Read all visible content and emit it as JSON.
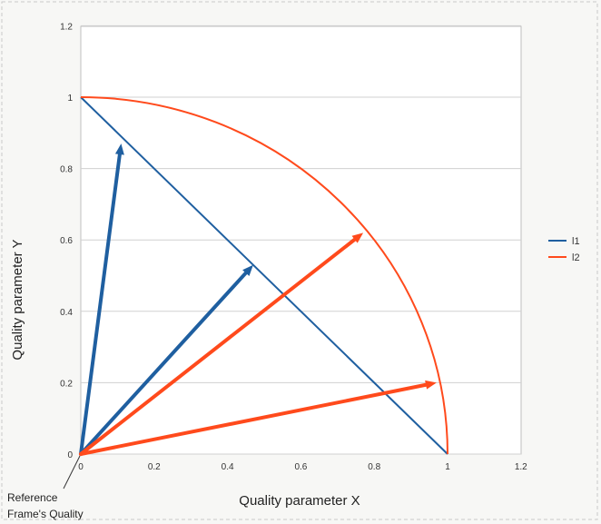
{
  "chart_data": {
    "type": "line",
    "title": "",
    "xlabel": "Quality parameter X",
    "ylabel": "Quality parameter Y",
    "xlim": [
      0,
      1.2
    ],
    "ylim": [
      0,
      1.2
    ],
    "x_ticks": [
      "0",
      "0.2",
      "0.4",
      "0.6",
      "0.8",
      "1",
      "1.2"
    ],
    "y_ticks": [
      "0",
      "0.2",
      "0.4",
      "0.6",
      "0.8",
      "1",
      "1.2"
    ],
    "grid": "horizontal",
    "legend_position": "right",
    "series": [
      {
        "name": "l1",
        "color": "#1f5fa0",
        "kind": "line",
        "points": [
          [
            0,
            1
          ],
          [
            1,
            0
          ]
        ]
      },
      {
        "name": "l2",
        "color": "#ff4a1c",
        "kind": "curve",
        "description_points": "quarter circle of radius 1",
        "points": [
          [
            0,
            1
          ],
          [
            0.259,
            0.966
          ],
          [
            0.5,
            0.866
          ],
          [
            0.707,
            0.707
          ],
          [
            0.866,
            0.5
          ],
          [
            0.966,
            0.259
          ],
          [
            1,
            0
          ]
        ]
      }
    ],
    "vectors": [
      {
        "series": "l1",
        "from": [
          0,
          0
        ],
        "to": [
          0.11,
          0.87
        ]
      },
      {
        "series": "l1",
        "from": [
          0,
          0
        ],
        "to": [
          0.47,
          0.53
        ]
      },
      {
        "series": "l2",
        "from": [
          0,
          0
        ],
        "to": [
          0.77,
          0.62
        ]
      },
      {
        "series": "l2",
        "from": [
          0,
          0
        ],
        "to": [
          0.97,
          0.2
        ]
      }
    ],
    "annotation": {
      "line1": "Reference",
      "line2": "Frame's Quality",
      "points_to": [
        0,
        0
      ]
    }
  }
}
